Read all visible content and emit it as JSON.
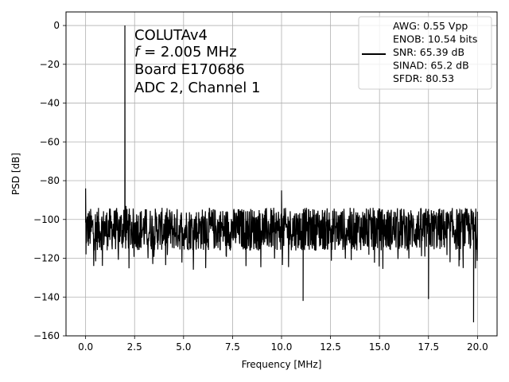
{
  "chart_data": {
    "type": "line",
    "xlabel": "Frequency [MHz]",
    "ylabel": "PSD [dB]",
    "xlim": [
      -1.0,
      21.0
    ],
    "ylim": [
      -160,
      7
    ],
    "xticks": [
      0.0,
      2.5,
      5.0,
      7.5,
      10.0,
      12.5,
      15.0,
      17.5,
      20.0
    ],
    "xtick_labels": [
      "0.0",
      "2.5",
      "5.0",
      "7.5",
      "10.0",
      "12.5",
      "15.0",
      "17.5",
      "20.0"
    ],
    "yticks": [
      0,
      -20,
      -40,
      -60,
      -80,
      -100,
      -120,
      -140,
      -160
    ],
    "ytick_labels": [
      "0",
      "−20",
      "−40",
      "−60",
      "−80",
      "−100",
      "−120",
      "−140",
      "−160"
    ],
    "grid": true,
    "annotation_lines": [
      "COLUTAv4",
      "= 2.005 MHz",
      "Board E170686",
      "ADC 2, Channel 1"
    ],
    "annotation_symbol": "f",
    "legend_position": "top-right",
    "series": [
      {
        "color": "#000000",
        "legend_lines": [
          "AWG: 0.55 Vpp",
          "ENOB: 10.54 bits",
          "SNR: 65.39 dB",
          "SINAD: 65.2 dB",
          "SFDR: 80.53"
        ],
        "noise_floor_db": -105,
        "noise_band_db": [
          -120,
          -94
        ],
        "points": [
          [
            0.0,
            -84
          ],
          [
            0.02,
            -118
          ],
          [
            2.005,
            0
          ],
          [
            1.95,
            -95
          ],
          [
            2.06,
            -93
          ],
          [
            10.0,
            -85
          ],
          [
            11.1,
            -142
          ],
          [
            17.5,
            -141
          ],
          [
            19.8,
            -153
          ],
          [
            20.0,
            -96
          ]
        ]
      }
    ]
  }
}
